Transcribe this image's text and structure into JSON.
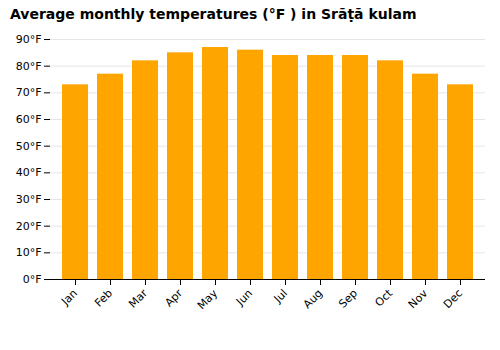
{
  "chart_data": {
    "type": "bar",
    "title": "Average monthly temperatures (°F ) in Srāṭā kulam",
    "categories": [
      "Jan",
      "Feb",
      "Mar",
      "Apr",
      "May",
      "Jun",
      "Jul",
      "Aug",
      "Sep",
      "Oct",
      "Nov",
      "Dec"
    ],
    "values": [
      73,
      77,
      82,
      85,
      87,
      86,
      84,
      84,
      84,
      82,
      77,
      73
    ],
    "color": "#FFA500",
    "ylim": [
      0,
      90
    ],
    "yticks": [
      {
        "value": 0,
        "label": "0°F"
      },
      {
        "value": 10,
        "label": "10°F"
      },
      {
        "value": 20,
        "label": "20°F"
      },
      {
        "value": 30,
        "label": "30°F"
      },
      {
        "value": 40,
        "label": "40°F"
      },
      {
        "value": 50,
        "label": "50°F"
      },
      {
        "value": 60,
        "label": "60°F"
      },
      {
        "value": 70,
        "label": "70°F"
      },
      {
        "value": 80,
        "label": "80°F"
      },
      {
        "value": 90,
        "label": "90°F"
      }
    ],
    "grid": true
  }
}
